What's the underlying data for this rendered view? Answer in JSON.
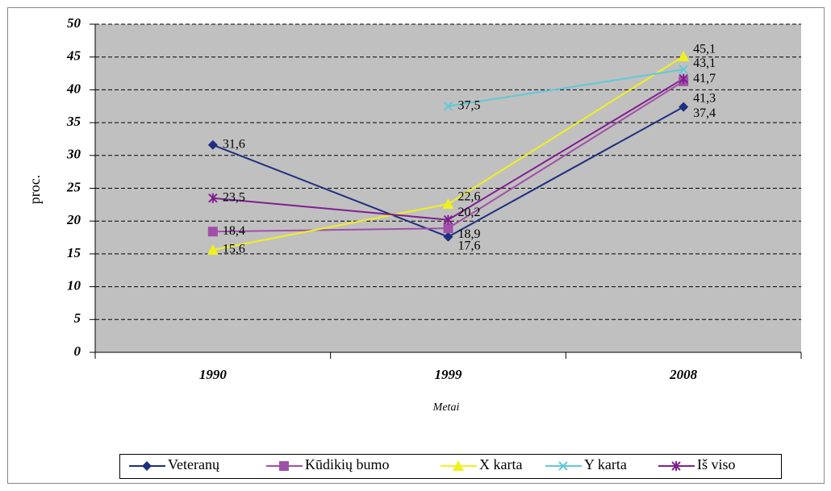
{
  "chart_data": {
    "type": "line",
    "categories": [
      "1990",
      "1999",
      "2008"
    ],
    "x_label": "Metai",
    "y_label": "proc.",
    "ylim": [
      0,
      50
    ],
    "yticks": [
      0,
      5,
      10,
      15,
      20,
      25,
      30,
      35,
      40,
      45,
      50
    ],
    "grid": true,
    "series": [
      {
        "name": "Veteranų",
        "color": "#1f2f7f",
        "marker": "diamond",
        "values": [
          31.6,
          17.6,
          37.4
        ],
        "value_labels": [
          "31,6",
          "17,6",
          "37,4"
        ]
      },
      {
        "name": "Kūdikių bumo",
        "color": "#a050a8",
        "marker": "square",
        "values": [
          18.4,
          18.9,
          41.3
        ],
        "value_labels": [
          "18,4",
          "18,9",
          "41,3"
        ]
      },
      {
        "name": "X karta",
        "color": "#f0f020",
        "marker": "triangle",
        "values": [
          15.6,
          22.6,
          45.1
        ],
        "value_labels": [
          "15,6",
          "22,6",
          "45,1"
        ]
      },
      {
        "name": "Y karta",
        "color": "#60c8d8",
        "marker": "x",
        "values": [
          null,
          37.5,
          43.1
        ],
        "value_labels": [
          null,
          "37,5",
          "43,1"
        ]
      },
      {
        "name": "Iš viso",
        "color": "#7f1f8f",
        "marker": "star",
        "values": [
          23.5,
          20.2,
          41.7
        ],
        "value_labels": [
          "23,5",
          "20,2",
          "41,7"
        ]
      }
    ]
  }
}
